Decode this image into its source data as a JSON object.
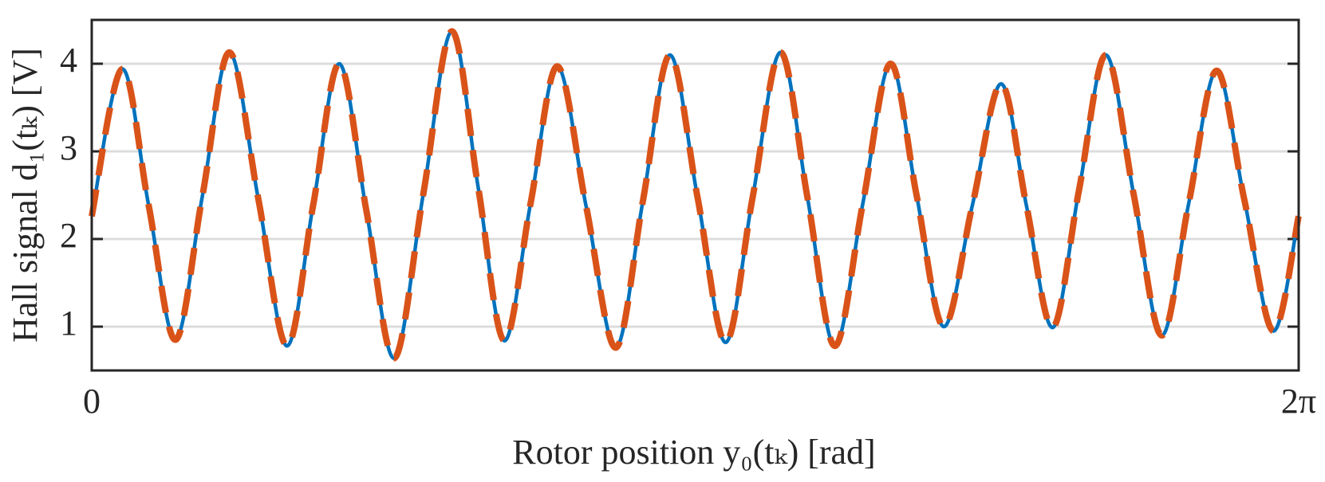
{
  "chart_data": {
    "type": "line",
    "ylabel": "Hall signal d₁(tₖ) [V]",
    "xlabel": "Rotor position y₀(tₖ) [rad]",
    "x": [
      0,
      0.158,
      0.295,
      0.436,
      0.576,
      0.717,
      0.867,
      1.016,
      1.153,
      1.289,
      1.43,
      1.575,
      1.725,
      1.874,
      2.011,
      2.147,
      2.284,
      2.424,
      2.574,
      2.728,
      2.869,
      3.01,
      3.155,
      3.3,
      3.441,
      3.586,
      3.727,
      3.868,
      4.013,
      4.158,
      4.294,
      4.435,
      4.585,
      4.734,
      4.866,
      5.003,
      5.139,
      5.28,
      5.425,
      5.57,
      5.711,
      5.856,
      6.001,
      6.151,
      6.283
    ],
    "series": [
      {
        "color": "#0072BD",
        "style": "solid",
        "values": [
          2.26,
          3.94,
          2.4,
          0.85,
          2.49,
          4.13,
          2.46,
          0.78,
          2.39,
          4.0,
          2.32,
          0.64,
          2.5,
          4.37,
          2.6,
          0.84,
          2.4,
          3.97,
          2.37,
          0.76,
          2.43,
          4.1,
          2.46,
          0.82,
          2.48,
          4.13,
          2.46,
          0.78,
          2.39,
          4.0,
          2.5,
          1.0,
          2.39,
          3.77,
          2.38,
          0.99,
          2.55,
          4.1,
          2.5,
          0.9,
          2.41,
          3.92,
          2.44,
          0.95,
          2.26
        ]
      },
      {
        "color": "#D95319",
        "style": "dashed",
        "values": [
          2.26,
          3.94,
          2.4,
          0.85,
          2.49,
          4.13,
          2.46,
          0.78,
          2.39,
          4.0,
          2.32,
          0.64,
          2.5,
          4.37,
          2.6,
          0.84,
          2.4,
          3.97,
          2.37,
          0.76,
          2.43,
          4.1,
          2.46,
          0.82,
          2.48,
          4.13,
          2.46,
          0.78,
          2.39,
          4.0,
          2.5,
          1.0,
          2.39,
          3.77,
          2.38,
          0.99,
          2.55,
          4.1,
          2.5,
          0.9,
          2.41,
          3.92,
          2.44,
          0.95,
          2.26
        ]
      }
    ],
    "xlim": [
      0,
      6.283185307
    ],
    "xticks": [
      0,
      {
        "value": 6.283185307,
        "label": "2π"
      }
    ],
    "ylim": [
      0.5,
      4.5
    ],
    "yticks": [
      1,
      2,
      3,
      4
    ],
    "grid": true
  }
}
